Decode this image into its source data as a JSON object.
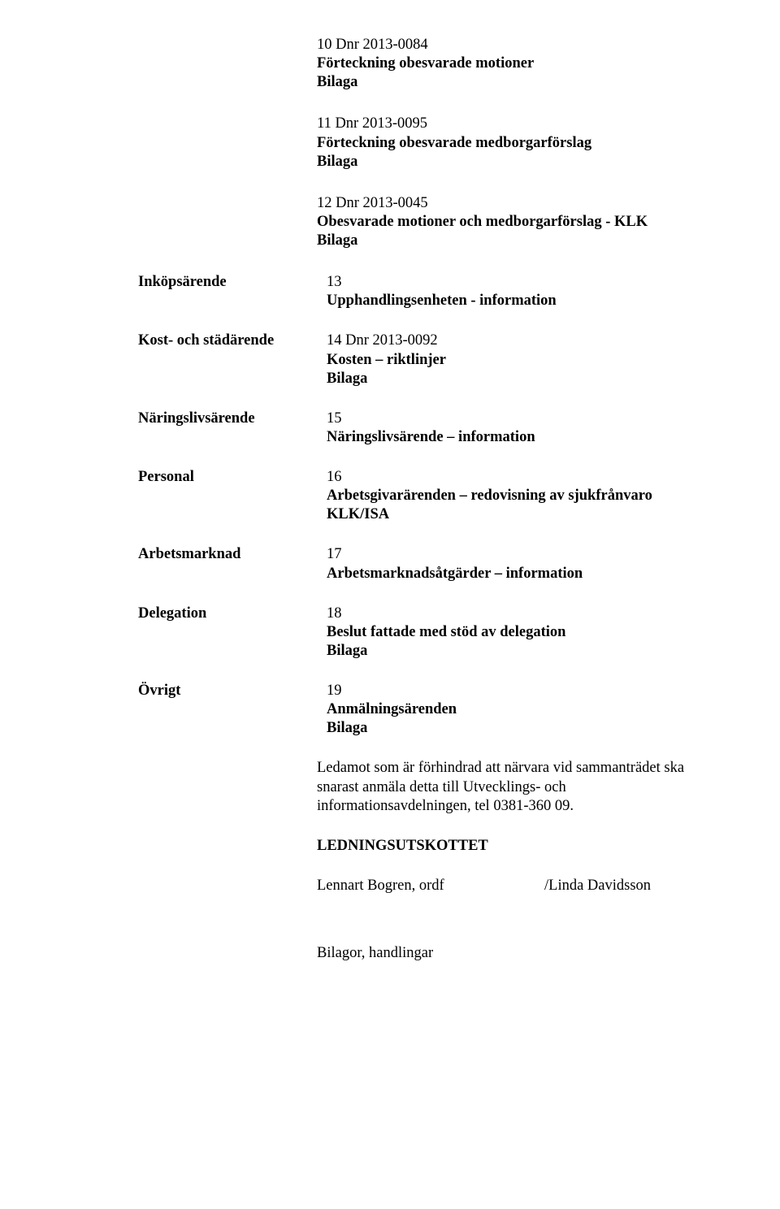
{
  "top": {
    "item10_dnr": "10 Dnr 2013-0084",
    "item10_title": "Förteckning obesvarade motioner",
    "item10_bilaga": "Bilaga",
    "item11_dnr": "11 Dnr 2013-0095",
    "item11_title": "Förteckning obesvarade medborgarförslag",
    "item11_bilaga": "Bilaga",
    "item12_dnr": "12 Dnr 2013-0045",
    "item12_title": "Obesvarade motioner och medborgarförslag - KLK",
    "item12_bilaga": "Bilaga"
  },
  "rows": {
    "inkop_label": "Inköpsärende",
    "inkop_num": "13",
    "inkop_title": "Upphandlingsenheten - information",
    "kost_label": "Kost- och städärende",
    "kost_dnr": "14 Dnr 2013-0092",
    "kost_title": "Kosten – riktlinjer",
    "kost_bilaga": "Bilaga",
    "naring_label": "Näringslivsärende",
    "naring_num": "15",
    "naring_title": "Näringslivsärende – information",
    "personal_label": "Personal",
    "personal_num": "16",
    "personal_title": "Arbetsgivarärenden – redovisning av sjukfrånvaro KLK/ISA",
    "arbm_label": "Arbetsmarknad",
    "arbm_num": "17",
    "arbm_title": "Arbetsmarknadsåtgärder – information",
    "deleg_label": "Delegation",
    "deleg_num": "18",
    "deleg_title": "Beslut fattade med stöd av delegation",
    "deleg_bilaga": "Bilaga",
    "ovrigt_label": "Övrigt",
    "ovrigt_num": "19",
    "ovrigt_title": "Anmälningsärenden",
    "ovrigt_bilaga": "Bilaga"
  },
  "footer": {
    "note": "Ledamot som är förhindrad att närvara vid sammanträdet ska snarast anmäla detta till Utvecklings- och informationsavdelningen, tel 0381-360 09.",
    "heading": "LEDNINGSUTSKOTTET",
    "sig_left": "Lennart Bogren, ordf",
    "sig_right": "/Linda Davidsson",
    "attachments": "Bilagor, handlingar"
  }
}
